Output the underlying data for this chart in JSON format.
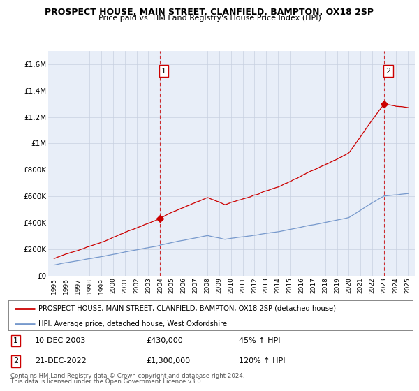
{
  "title": "PROSPECT HOUSE, MAIN STREET, CLANFIELD, BAMPTON, OX18 2SP",
  "subtitle": "Price paid vs. HM Land Registry's House Price Index (HPI)",
  "hpi_label": "HPI: Average price, detached house, West Oxfordshire",
  "price_label": "PROSPECT HOUSE, MAIN STREET, CLANFIELD, BAMPTON, OX18 2SP (detached house)",
  "price_color": "#cc0000",
  "hpi_color": "#7799cc",
  "annotation1_date": "10-DEC-2003",
  "annotation1_price": "£430,000",
  "annotation1_hpi": "45% ↑ HPI",
  "annotation2_date": "21-DEC-2022",
  "annotation2_price": "£1,300,000",
  "annotation2_hpi": "120% ↑ HPI",
  "footnote1": "Contains HM Land Registry data © Crown copyright and database right 2024.",
  "footnote2": "This data is licensed under the Open Government Licence v3.0.",
  "ylim": [
    0,
    1700000
  ],
  "yticks": [
    0,
    200000,
    400000,
    600000,
    800000,
    1000000,
    1200000,
    1400000,
    1600000
  ],
  "ytick_labels": [
    "£0",
    "£200K",
    "£400K",
    "£600K",
    "£800K",
    "£1M",
    "£1.2M",
    "£1.4M",
    "£1.6M"
  ],
  "xtick_years": [
    1995,
    1996,
    1997,
    1998,
    1999,
    2000,
    2001,
    2002,
    2003,
    2004,
    2005,
    2006,
    2007,
    2008,
    2009,
    2010,
    2011,
    2012,
    2013,
    2014,
    2015,
    2016,
    2017,
    2018,
    2019,
    2020,
    2021,
    2022,
    2023,
    2024,
    2025
  ],
  "price_sale1_x": 2003.95,
  "price_sale1_y": 430000,
  "price_sale2_x": 2022.97,
  "price_sale2_y": 1300000,
  "bg_color": "#e8eef8",
  "grid_color": "#c8d0e0"
}
